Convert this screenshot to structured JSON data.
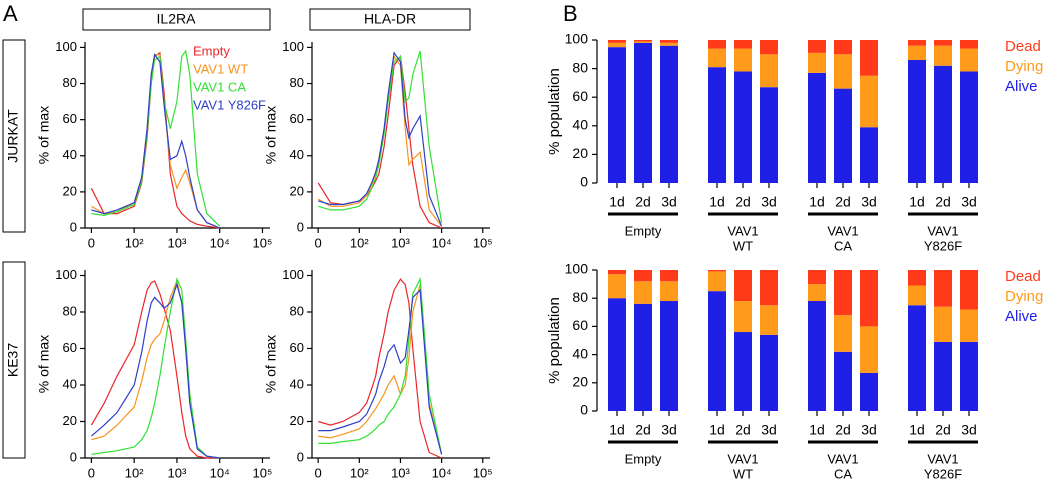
{
  "panel_letters": [
    "A",
    "B"
  ],
  "columns": [
    "IL2RA",
    "HLA-DR"
  ],
  "rows": [
    "JURKAT",
    "KE37"
  ],
  "histogram_legend": [
    {
      "name": "Empty",
      "color": "#e8262b"
    },
    {
      "name": "VAV1 WT",
      "color": "#f7941d"
    },
    {
      "name": "VAV1 CA",
      "color": "#33e033"
    },
    {
      "name": "VAV1 Y826F",
      "color": "#2e3fc8"
    }
  ],
  "chart_data": [
    {
      "type": "line",
      "y_label": "% of max",
      "xscale": "biexponential",
      "x": [
        0,
        30,
        60,
        100,
        150,
        200,
        250,
        300,
        400,
        500,
        700,
        1000,
        1300,
        1600,
        2000,
        3000,
        5000,
        10000
      ],
      "xlim": [
        -15,
        150000
      ],
      "xticks": [
        0,
        {
          "value": 100,
          "label": "10²"
        },
        {
          "value": 1000,
          "label": "10³"
        },
        {
          "value": 10000,
          "label": "10⁴"
        },
        {
          "value": 100000,
          "label": "10⁵"
        }
      ],
      "ylim": [
        0,
        103
      ],
      "yticks": [
        0,
        20,
        40,
        60,
        80,
        100
      ],
      "legend": true,
      "series": [
        {
          "values": [
            22,
            8,
            8,
            12,
            25,
            50,
            80,
            95,
            97,
            75,
            30,
            12,
            8,
            6,
            4,
            2,
            1,
            0
          ]
        },
        {
          "values": [
            12,
            8,
            9,
            14,
            28,
            55,
            82,
            96,
            96,
            70,
            35,
            22,
            28,
            32,
            25,
            10,
            3,
            0
          ]
        },
        {
          "values": [
            8,
            7,
            9,
            13,
            26,
            52,
            80,
            93,
            95,
            70,
            55,
            70,
            95,
            98,
            85,
            30,
            8,
            1
          ]
        },
        {
          "values": [
            10,
            8,
            10,
            14,
            28,
            55,
            85,
            96,
            92,
            68,
            38,
            40,
            48,
            40,
            28,
            10,
            3,
            0
          ]
        }
      ]
    },
    {
      "type": "line",
      "y_label": "% of max",
      "xscale": "biexponential",
      "x": [
        0,
        30,
        60,
        100,
        150,
        200,
        250,
        300,
        400,
        500,
        700,
        1000,
        1300,
        1600,
        2000,
        3000,
        5000,
        10000
      ],
      "xlim": [
        -15,
        150000
      ],
      "xticks": [
        0,
        {
          "value": 100,
          "label": "10²"
        },
        {
          "value": 1000,
          "label": "10³"
        },
        {
          "value": 10000,
          "label": "10⁴"
        },
        {
          "value": 100000,
          "label": "10⁵"
        }
      ],
      "ylim": [
        0,
        103
      ],
      "yticks": [
        0,
        20,
        40,
        60,
        80,
        100
      ],
      "legend": false,
      "series": [
        {
          "values": [
            25,
            14,
            13,
            15,
            18,
            22,
            26,
            30,
            45,
            62,
            90,
            95,
            75,
            55,
            35,
            12,
            3,
            0
          ]
        },
        {
          "values": [
            16,
            12,
            12,
            14,
            18,
            24,
            30,
            38,
            55,
            72,
            95,
            90,
            55,
            35,
            38,
            42,
            10,
            1
          ]
        },
        {
          "values": [
            12,
            10,
            10,
            12,
            16,
            22,
            28,
            35,
            52,
            70,
            92,
            95,
            70,
            72,
            85,
            98,
            45,
            3
          ]
        },
        {
          "values": [
            15,
            13,
            13,
            15,
            19,
            25,
            31,
            38,
            55,
            74,
            97,
            92,
            60,
            50,
            55,
            62,
            18,
            1
          ]
        }
      ]
    },
    {
      "type": "line",
      "y_label": "% of max",
      "xscale": "biexponential",
      "x": [
        0,
        30,
        60,
        100,
        150,
        200,
        250,
        300,
        400,
        500,
        700,
        1000,
        1300,
        1600,
        2000,
        3000,
        5000,
        10000
      ],
      "xlim": [
        -15,
        150000
      ],
      "xticks": [
        0,
        {
          "value": 100,
          "label": "10²"
        },
        {
          "value": 1000,
          "label": "10³"
        },
        {
          "value": 10000,
          "label": "10⁴"
        },
        {
          "value": 100000,
          "label": "10⁵"
        }
      ],
      "ylim": [
        0,
        103
      ],
      "yticks": [
        0,
        20,
        40,
        60,
        80,
        100
      ],
      "legend": false,
      "series": [
        {
          "values": [
            18,
            30,
            45,
            62,
            80,
            92,
            96,
            97,
            90,
            82,
            70,
            45,
            25,
            12,
            5,
            1,
            0,
            0
          ]
        },
        {
          "values": [
            10,
            12,
            18,
            28,
            42,
            55,
            62,
            65,
            68,
            75,
            88,
            97,
            85,
            60,
            30,
            5,
            1,
            0
          ]
        },
        {
          "values": [
            2,
            3,
            4,
            6,
            10,
            15,
            22,
            30,
            45,
            60,
            80,
            98,
            92,
            65,
            35,
            6,
            1,
            0
          ]
        },
        {
          "values": [
            12,
            18,
            25,
            40,
            58,
            75,
            85,
            88,
            85,
            82,
            85,
            95,
            85,
            60,
            30,
            5,
            1,
            0
          ]
        }
      ]
    },
    {
      "type": "line",
      "y_label": "% of max",
      "xscale": "biexponential",
      "x": [
        0,
        30,
        60,
        100,
        150,
        200,
        250,
        300,
        400,
        500,
        700,
        1000,
        1300,
        1600,
        2000,
        3000,
        5000,
        10000
      ],
      "xlim": [
        -15,
        150000
      ],
      "xticks": [
        0,
        {
          "value": 100,
          "label": "10²"
        },
        {
          "value": 1000,
          "label": "10³"
        },
        {
          "value": 10000,
          "label": "10⁴"
        },
        {
          "value": 100000,
          "label": "10⁵"
        }
      ],
      "ylim": [
        0,
        103
      ],
      "yticks": [
        0,
        20,
        40,
        60,
        80,
        100
      ],
      "legend": false,
      "series": [
        {
          "values": [
            20,
            18,
            20,
            25,
            30,
            38,
            45,
            55,
            68,
            80,
            92,
            98,
            95,
            85,
            60,
            20,
            3,
            0
          ]
        },
        {
          "values": [
            12,
            11,
            13,
            16,
            20,
            24,
            27,
            30,
            35,
            40,
            45,
            35,
            40,
            55,
            80,
            95,
            30,
            2
          ]
        },
        {
          "values": [
            8,
            8,
            9,
            10,
            12,
            14,
            16,
            18,
            20,
            24,
            28,
            35,
            45,
            65,
            90,
            98,
            35,
            2
          ]
        },
        {
          "values": [
            15,
            15,
            17,
            20,
            24,
            30,
            35,
            42,
            50,
            58,
            62,
            52,
            55,
            70,
            88,
            92,
            28,
            2
          ]
        }
      ]
    },
    {
      "type": "bar",
      "stacked": true,
      "y_label": "% population",
      "categories": [
        "1d",
        "2d",
        "3d",
        "1d",
        "2d",
        "3d",
        "1d",
        "2d",
        "3d",
        "1d",
        "2d",
        "3d"
      ],
      "groups": [
        [
          "Empty"
        ],
        [
          "VAV1",
          "WT"
        ],
        [
          "VAV1",
          "CA"
        ],
        [
          "VAV1",
          "Y826F"
        ]
      ],
      "ylim": [
        0,
        100
      ],
      "yticks": [
        0,
        20,
        40,
        60,
        80,
        100
      ],
      "series": [
        {
          "name": "Alive",
          "color": "#1f1fe6",
          "values": [
            95,
            98,
            96,
            81,
            78,
            67,
            77,
            66,
            39,
            86,
            82,
            78
          ]
        },
        {
          "name": "Dying",
          "color": "#ff9a1a",
          "values": [
            3,
            1,
            2,
            13,
            16,
            23,
            14,
            24,
            36,
            10,
            14,
            16
          ]
        },
        {
          "name": "Dead",
          "color": "#ff3b1a",
          "values": [
            2,
            1,
            2,
            6,
            6,
            10,
            9,
            10,
            25,
            4,
            4,
            6
          ]
        }
      ]
    },
    {
      "type": "bar",
      "stacked": true,
      "y_label": "% population",
      "categories": [
        "1d",
        "2d",
        "3d",
        "1d",
        "2d",
        "3d",
        "1d",
        "2d",
        "3d",
        "1d",
        "2d",
        "3d"
      ],
      "groups": [
        [
          "Empty"
        ],
        [
          "VAV1",
          "WT"
        ],
        [
          "VAV1",
          "CA"
        ],
        [
          "VAV1",
          "Y826F"
        ]
      ],
      "ylim": [
        0,
        100
      ],
      "yticks": [
        0,
        20,
        40,
        60,
        80,
        100
      ],
      "series": [
        {
          "name": "Alive",
          "color": "#1f1fe6",
          "values": [
            80,
            76,
            78,
            85,
            56,
            54,
            78,
            42,
            27,
            75,
            49,
            49
          ]
        },
        {
          "name": "Dying",
          "color": "#ff9a1a",
          "values": [
            17,
            16,
            14,
            14,
            22,
            21,
            12,
            26,
            33,
            14,
            25,
            23
          ]
        },
        {
          "name": "Dead",
          "color": "#ff3b1a",
          "values": [
            3,
            8,
            8,
            1,
            22,
            25,
            10,
            32,
            40,
            11,
            26,
            28
          ]
        }
      ]
    }
  ]
}
